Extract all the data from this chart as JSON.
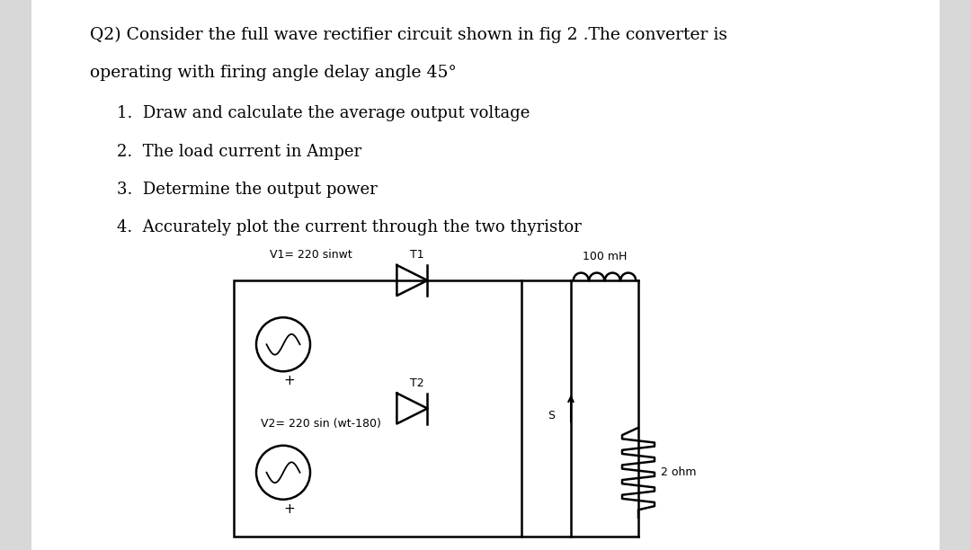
{
  "background_color": "#d8d8d8",
  "page_bg": "#ffffff",
  "text_color": "#000000",
  "title_line1": "Q2) Consider the full wave rectifier circuit shown in fig 2 .The converter is",
  "title_line2": "operating with firing angle delay angle 45°",
  "items": [
    "1.  Draw and calculate the average output voltage",
    "2.  The load current in Amper",
    "3.  Determine the output power",
    "4.  Accurately plot the current through the two thyristor"
  ],
  "v1_label": "V1= 220 sinwt",
  "v2_label": "V2= 220 sin (wt-180)",
  "t1_label": "T1",
  "t2_label": "T2",
  "ind_label": "100 mH",
  "res_label": "2 ohm",
  "s_label": "S"
}
